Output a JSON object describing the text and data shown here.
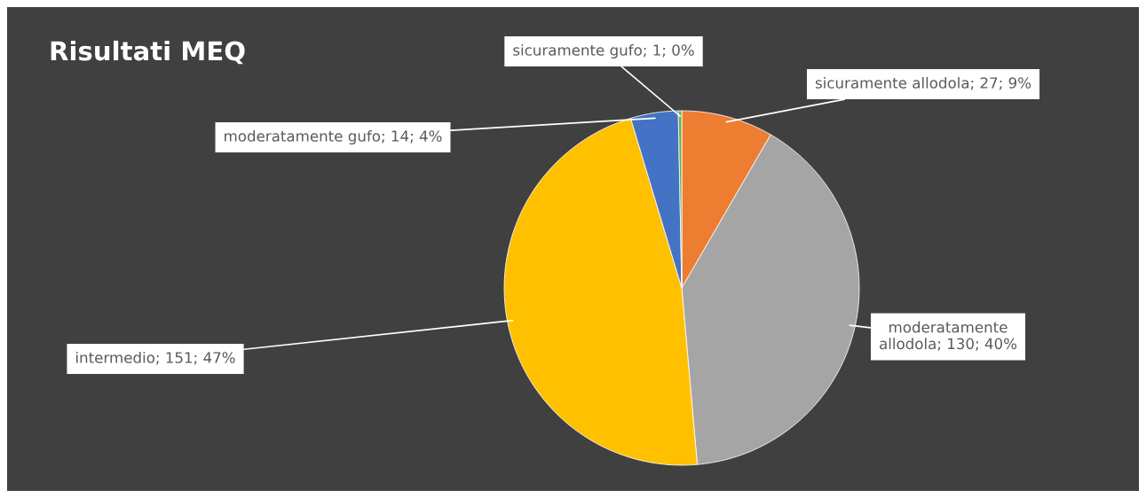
{
  "chart_data": {
    "type": "pie",
    "title": "Risultati MEQ",
    "categories": [
      "sicuramente allodola",
      "moderatamente allodola",
      "intermedio",
      "moderatamente gufo",
      "sicuramente gufo"
    ],
    "values": [
      27,
      130,
      151,
      14,
      1
    ],
    "colors": [
      "#ed7d31",
      "#a5a5a5",
      "#ffc000",
      "#4472c4",
      "#70ad47"
    ],
    "value_labels": [
      "27; 9%",
      "130; 40%",
      "151; 47%",
      "14; 4%",
      "1; 0%"
    ]
  }
}
